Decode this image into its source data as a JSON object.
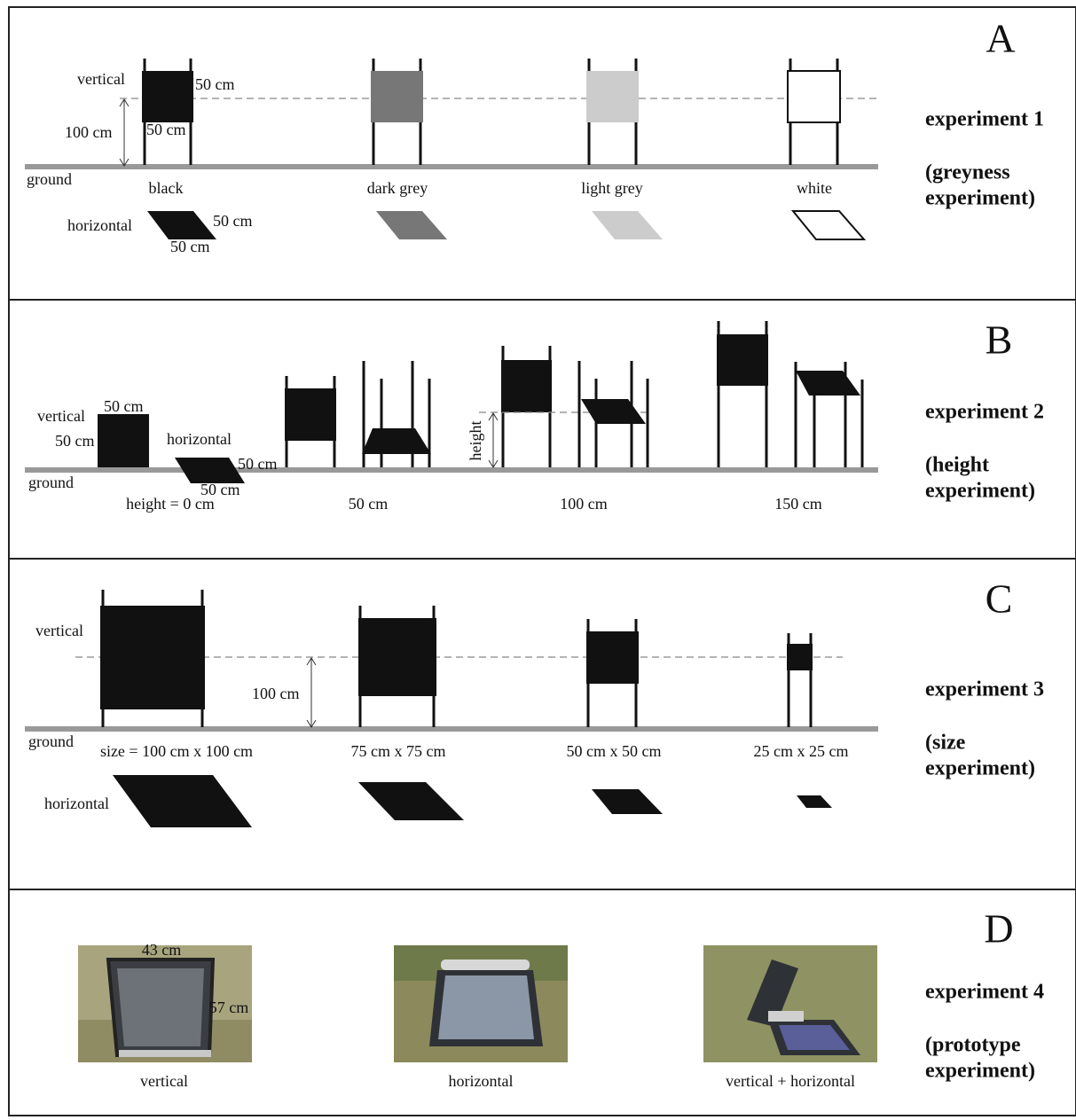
{
  "panels": [
    {
      "letter": "A",
      "experiment": "experiment 1",
      "description": [
        "(greyness",
        "experiment)"
      ],
      "labels": [
        "vertical",
        "50 cm",
        "100 cm",
        "50 cm",
        "ground",
        "black",
        "dark grey",
        "light grey",
        "white",
        "horizontal",
        "50 cm",
        "50 cm"
      ]
    },
    {
      "letter": "B",
      "experiment": "experiment 2",
      "description": [
        "(height",
        "experiment)"
      ],
      "labels": [
        "vertical",
        "50 cm",
        "50 cm",
        "horizontal",
        "50 cm",
        "50 cm",
        "ground",
        "height = 0 cm",
        "50 cm",
        "height",
        "100 cm",
        "150 cm"
      ]
    },
    {
      "letter": "C",
      "experiment": "experiment 3",
      "description": [
        "(size",
        "experiment)"
      ],
      "labels": [
        "vertical",
        "100 cm",
        "ground",
        "size = 100 cm x 100 cm",
        "75 cm x 75 cm",
        "50 cm x 50 cm",
        "25 cm x 25 cm",
        "horizontal"
      ]
    },
    {
      "letter": "D",
      "experiment": "experiment 4",
      "description": [
        "(prototype",
        "experiment)"
      ],
      "labels": [
        "43 cm",
        "57 cm",
        "vertical",
        "horizontal",
        "vertical + horizontal"
      ]
    }
  ]
}
